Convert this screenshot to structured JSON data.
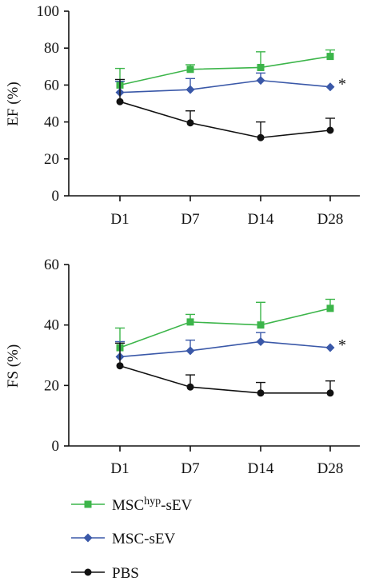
{
  "colors": {
    "msc_hyp": "#3cb54a",
    "msc": "#3a58a8",
    "pbs": "#111111",
    "axis": "#111111"
  },
  "legend": [
    {
      "series": "MSC-hyp-sEV",
      "label_main": "MSC",
      "label_sup": "hyp",
      "label_tail": "-sEV",
      "marker": "square",
      "color_key": "msc_hyp"
    },
    {
      "series": "MSC-sEV",
      "label_main": "MSC-sEV",
      "label_sup": "",
      "label_tail": "",
      "marker": "diamond",
      "color_key": "msc"
    },
    {
      "series": "PBS",
      "label_main": "PBS",
      "label_sup": "",
      "label_tail": "",
      "marker": "circle",
      "color_key": "pbs"
    }
  ],
  "chart_data": [
    {
      "type": "line",
      "ylabel": "EF (%)",
      "xlabel": "",
      "categories": [
        "D1",
        "D7",
        "D14",
        "D28"
      ],
      "ylim": [
        0,
        100
      ],
      "yticks": [
        0,
        20,
        40,
        60,
        80,
        100
      ],
      "annotation": "*",
      "annotation_series": "MSC-sEV",
      "series": [
        {
          "name": "MSC-hyp-sEV",
          "color_key": "msc_hyp",
          "marker": "square",
          "values": [
            60,
            68.5,
            69.5,
            75.5
          ],
          "error": [
            9,
            2.5,
            8.5,
            3.5
          ]
        },
        {
          "name": "MSC-sEV",
          "color_key": "msc",
          "marker": "diamond",
          "values": [
            56,
            57.5,
            62.5,
            59
          ],
          "error": [
            6,
            6,
            4,
            0
          ]
        },
        {
          "name": "PBS",
          "color_key": "pbs",
          "marker": "circle",
          "values": [
            51,
            39.5,
            31.5,
            35.5
          ],
          "error": [
            12,
            6.5,
            8.5,
            6.5
          ]
        }
      ]
    },
    {
      "type": "line",
      "ylabel": "FS (%)",
      "xlabel": "",
      "categories": [
        "D1",
        "D7",
        "D14",
        "D28"
      ],
      "ylim": [
        0,
        60
      ],
      "yticks": [
        0,
        20,
        40,
        60
      ],
      "annotation": "*",
      "annotation_series": "MSC-sEV",
      "series": [
        {
          "name": "MSC-hyp-sEV",
          "color_key": "msc_hyp",
          "marker": "square",
          "values": [
            32.5,
            41,
            40,
            45.5
          ],
          "error": [
            6.5,
            2.5,
            7.5,
            3
          ]
        },
        {
          "name": "MSC-sEV",
          "color_key": "msc",
          "marker": "diamond",
          "values": [
            29.5,
            31.5,
            34.5,
            32.5
          ],
          "error": [
            5,
            3.5,
            3,
            0
          ]
        },
        {
          "name": "PBS",
          "color_key": "pbs",
          "marker": "circle",
          "values": [
            26.5,
            19.5,
            17.5,
            17.5
          ],
          "error": [
            7.5,
            4,
            3.5,
            4
          ]
        }
      ]
    }
  ]
}
